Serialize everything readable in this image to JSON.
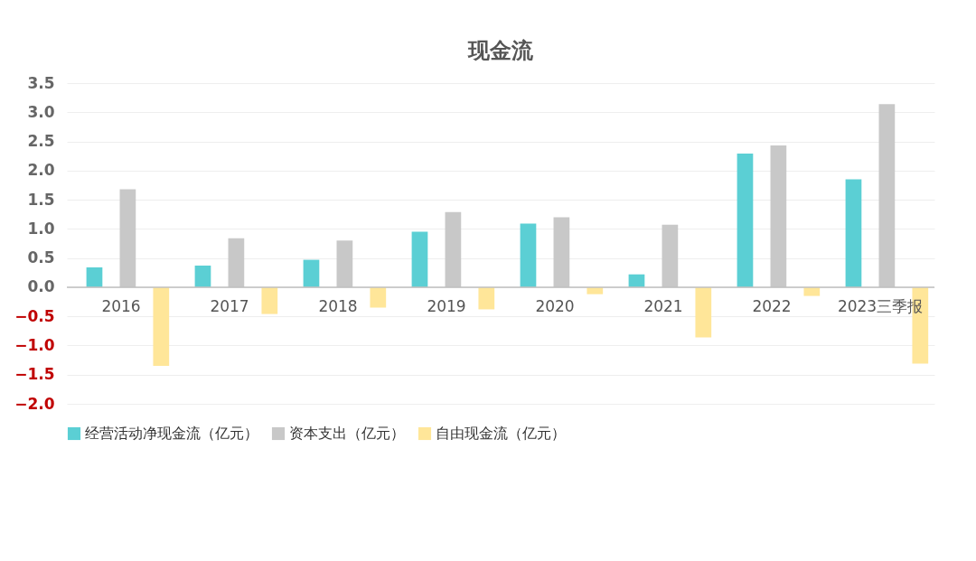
{
  "chart_data": {
    "type": "bar",
    "title": "现金流",
    "categories": [
      "2016",
      "2017",
      "2018",
      "2019",
      "2020",
      "2021",
      "2022",
      "2023三季报"
    ],
    "series": [
      {
        "name": "经营活动净现金流（亿元）",
        "color": "#5bcfd4",
        "values": [
          0.34,
          0.37,
          0.47,
          0.95,
          1.09,
          0.22,
          2.29,
          1.85
        ]
      },
      {
        "name": "资本支出（亿元）",
        "color": "#c8c8c8",
        "values": [
          1.68,
          0.84,
          0.8,
          1.29,
          1.2,
          1.07,
          2.43,
          3.14
        ]
      },
      {
        "name": "自由现金流（亿元）",
        "color": "#ffe699",
        "values": [
          -1.35,
          -0.46,
          -0.35,
          -0.38,
          -0.12,
          -0.86,
          -0.15,
          -1.31
        ]
      }
    ],
    "ylim": [
      -2.0,
      3.5
    ],
    "yticks": [
      {
        "value": -2.0,
        "label": "−2.0"
      },
      {
        "value": -1.5,
        "label": "−1.5"
      },
      {
        "value": -1.0,
        "label": "−1.0"
      },
      {
        "value": -0.5,
        "label": "−0.5"
      },
      {
        "value": 0.0,
        "label": "0.0"
      },
      {
        "value": 0.5,
        "label": "0.5"
      },
      {
        "value": 1.0,
        "label": "1.0"
      },
      {
        "value": 1.5,
        "label": "1.5"
      },
      {
        "value": 2.0,
        "label": "2.0"
      },
      {
        "value": 2.5,
        "label": "2.5"
      },
      {
        "value": 3.0,
        "label": "3.0"
      },
      {
        "value": 3.5,
        "label": "3.5"
      }
    ],
    "grid": "y",
    "legend": "bottom"
  }
}
